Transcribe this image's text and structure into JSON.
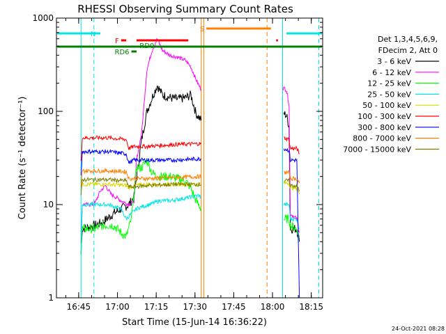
{
  "chart_data": {
    "type": "line",
    "title": "RHESSI Observing Summary Count Rates",
    "xlabel": "Start Time (15-Jun-14 16:36:22)",
    "ylabel": "Count Rate (s⁻¹ detector⁻¹)",
    "yscale": "log",
    "ylim": [
      1,
      1000
    ],
    "xlim_minutes_after_1636": [
      0,
      100
    ],
    "x_ticks": [
      "16:45",
      "17:00",
      "17:15",
      "17:30",
      "17:45",
      "18:00",
      "18:15"
    ],
    "y_ticks": [
      "1",
      "10",
      "100",
      "1000"
    ],
    "legend_header": [
      "Det 1,3,4,5,6,9,",
      "FDecim 2, Att 0"
    ],
    "legend_position": "right",
    "timestamp": "24-Oct-2021 08:28",
    "flags": [
      {
        "label": "N",
        "color": "#00e5e5",
        "segments": [
          [
            0,
            17
          ],
          [
            89,
            103
          ]
        ]
      },
      {
        "label": "S",
        "color": "#ff7f00",
        "segments": [
          [
            58,
            83
          ]
        ]
      },
      {
        "label": "F",
        "color": "#ff0000",
        "segments": [
          [
            25,
            27
          ],
          [
            31,
            51
          ],
          [
            85,
            85.7
          ]
        ]
      },
      {
        "label": "RD6",
        "color": "#007f00",
        "segments": [
          [
            29,
            31
          ]
        ]
      },
      {
        "label": "RD0",
        "color": "#007f00",
        "segments": [
          [
            0,
            103
          ]
        ]
      }
    ],
    "vertical_lines": [
      {
        "color": "#00e5e5",
        "style": "solid",
        "x": 9.5
      },
      {
        "color": "#00e5e5",
        "style": "dashed",
        "x": 14.5
      },
      {
        "color": "#ff7f00",
        "style": "solid",
        "x": 56
      },
      {
        "color": "#ff7f00",
        "style": "solid",
        "x": 57
      },
      {
        "color": "#ff7f00",
        "style": "dashed",
        "x": 81.5
      },
      {
        "color": "#00e5e5",
        "style": "solid",
        "x": 87.5
      },
      {
        "color": "#00e5e5",
        "style": "dashed",
        "x": 101.5
      }
    ],
    "series": [
      {
        "name": "3 - 6 keV",
        "color": "#000000",
        "segments": [
          [
            [
              9.5,
              3
            ],
            [
              10,
              5.5
            ],
            [
              15,
              6
            ],
            [
              18,
              6.5
            ],
            [
              22,
              8
            ],
            [
              25,
              9
            ],
            [
              28,
              10
            ],
            [
              30,
              12
            ],
            [
              31,
              20
            ],
            [
              33,
              50
            ],
            [
              35,
              100
            ],
            [
              37,
              140
            ],
            [
              39,
              190
            ],
            [
              41,
              150
            ],
            [
              44,
              140
            ],
            [
              47,
              135
            ],
            [
              50,
              140
            ],
            [
              52,
              150
            ],
            [
              54,
              95
            ],
            [
              56,
              80
            ]
          ],
          [
            [
              88,
              95
            ],
            [
              89,
              90
            ],
            [
              90,
              70
            ],
            [
              90.5,
              5.5
            ],
            [
              93,
              5.5
            ],
            [
              94,
              4
            ]
          ]
        ]
      },
      {
        "name": "6 - 12 keV",
        "color": "#ff00ff",
        "segments": [
          [
            [
              9.5,
              4
            ],
            [
              10,
              10
            ],
            [
              14,
              10
            ],
            [
              15,
              10.5
            ],
            [
              17,
              14
            ],
            [
              19,
              16
            ],
            [
              21,
              13
            ],
            [
              23,
              12
            ],
            [
              25,
              11
            ],
            [
              28,
              10
            ],
            [
              30,
              11
            ],
            [
              31,
              30
            ],
            [
              33,
              60
            ],
            [
              35,
              280
            ],
            [
              37,
              450
            ],
            [
              39,
              600
            ],
            [
              41,
              450
            ],
            [
              44,
              400
            ],
            [
              47,
              380
            ],
            [
              50,
              350
            ],
            [
              52,
              300
            ],
            [
              54,
              220
            ],
            [
              56,
              170
            ]
          ],
          [
            [
              87.5,
              180
            ],
            [
              89,
              170
            ],
            [
              90,
              120
            ],
            [
              90.5,
              8
            ],
            [
              93,
              7
            ],
            [
              94,
              5
            ]
          ]
        ]
      },
      {
        "name": "12 - 25 keV",
        "color": "#00ff00",
        "segments": [
          [
            [
              9.5,
              3
            ],
            [
              10,
              5.5
            ],
            [
              15,
              5.5
            ],
            [
              18,
              6
            ],
            [
              22,
              6
            ],
            [
              25,
              5
            ],
            [
              27,
              4.5
            ],
            [
              29,
              7
            ],
            [
              31,
              25
            ],
            [
              33,
              25
            ],
            [
              35,
              30
            ],
            [
              37,
              22
            ],
            [
              39,
              20
            ],
            [
              41,
              20
            ],
            [
              44,
              20
            ],
            [
              47,
              19
            ],
            [
              50,
              18
            ],
            [
              52,
              15
            ],
            [
              54,
              11
            ],
            [
              56,
              9
            ]
          ],
          [
            [
              88,
              7
            ],
            [
              89,
              7
            ],
            [
              90,
              7
            ],
            [
              90.5,
              6
            ],
            [
              93,
              5.5
            ],
            [
              94,
              4.5
            ]
          ]
        ]
      },
      {
        "name": "25 - 50 keV",
        "color": "#00e5e5",
        "segments": [
          [
            [
              9.5,
              3
            ],
            [
              10,
              10
            ],
            [
              15,
              10
            ],
            [
              20,
              10
            ],
            [
              25,
              9
            ],
            [
              27,
              7
            ],
            [
              29,
              8
            ],
            [
              31,
              9
            ],
            [
              33,
              9.5
            ],
            [
              36,
              10
            ],
            [
              40,
              11
            ],
            [
              44,
              11
            ],
            [
              48,
              11.5
            ],
            [
              52,
              12
            ],
            [
              55,
              12.5
            ],
            [
              56,
              12
            ]
          ],
          [
            [
              88,
              10
            ],
            [
              90,
              10
            ],
            [
              90.5,
              7
            ],
            [
              93,
              7
            ],
            [
              94,
              5.5
            ]
          ]
        ]
      },
      {
        "name": "50 - 100 keV",
        "color": "#d8d800",
        "segments": [
          [
            [
              9.5,
              16
            ],
            [
              10,
              16.5
            ],
            [
              20,
              16.5
            ],
            [
              27,
              16
            ],
            [
              28,
              15
            ],
            [
              30,
              16
            ],
            [
              35,
              16.5
            ],
            [
              45,
              16.5
            ],
            [
              56,
              16.5
            ]
          ],
          [
            [
              88,
              17
            ],
            [
              90,
              17
            ],
            [
              90.5,
              15
            ],
            [
              93,
              15
            ],
            [
              94,
              13
            ]
          ]
        ]
      },
      {
        "name": "100 - 300 keV",
        "color": "#ff0000",
        "segments": [
          [
            [
              9.5,
              30
            ],
            [
              10,
              52
            ],
            [
              20,
              52
            ],
            [
              27,
              50
            ],
            [
              28,
              40
            ],
            [
              30,
              42
            ],
            [
              35,
              42
            ],
            [
              45,
              44
            ],
            [
              56,
              45
            ]
          ],
          [
            [
              88,
              52
            ],
            [
              90,
              50
            ],
            [
              90.5,
              40
            ],
            [
              93,
              40
            ],
            [
              94,
              35
            ]
          ]
        ]
      },
      {
        "name": "300 - 800 keV",
        "color": "#0000ff",
        "segments": [
          [
            [
              9.5,
              20
            ],
            [
              10,
              37
            ],
            [
              20,
              37
            ],
            [
              27,
              35
            ],
            [
              28,
              28
            ],
            [
              30,
              30
            ],
            [
              35,
              30
            ],
            [
              45,
              30
            ],
            [
              56,
              31
            ]
          ],
          [
            [
              88,
              40
            ],
            [
              90,
              38
            ],
            [
              90.5,
              30
            ],
            [
              93,
              30
            ],
            [
              94,
              1
            ]
          ]
        ]
      },
      {
        "name": "800 - 7000 keV",
        "color": "#ff7f00",
        "segments": [
          [
            [
              9.5,
              15
            ],
            [
              10,
              23
            ],
            [
              20,
              23
            ],
            [
              27,
              22.5
            ],
            [
              28,
              19
            ],
            [
              30,
              19
            ],
            [
              35,
              19
            ],
            [
              45,
              19.5
            ],
            [
              56,
              20
            ]
          ],
          [
            [
              88,
              22
            ],
            [
              90,
              22
            ],
            [
              90.5,
              19
            ],
            [
              93,
              19
            ],
            [
              94,
              17
            ]
          ]
        ]
      },
      {
        "name": "7000 - 15000 keV",
        "color": "#7f7f00",
        "segments": [
          [
            [
              9.5,
              12
            ],
            [
              10,
              18.5
            ],
            [
              20,
              18.5
            ],
            [
              27,
              18
            ],
            [
              28,
              15.5
            ],
            [
              30,
              15.5
            ],
            [
              35,
              16
            ],
            [
              45,
              16.5
            ],
            [
              56,
              16.5
            ]
          ],
          [
            [
              88,
              18
            ],
            [
              90,
              18
            ],
            [
              90.5,
              16
            ],
            [
              93,
              16
            ],
            [
              94,
              14
            ]
          ]
        ]
      }
    ]
  }
}
